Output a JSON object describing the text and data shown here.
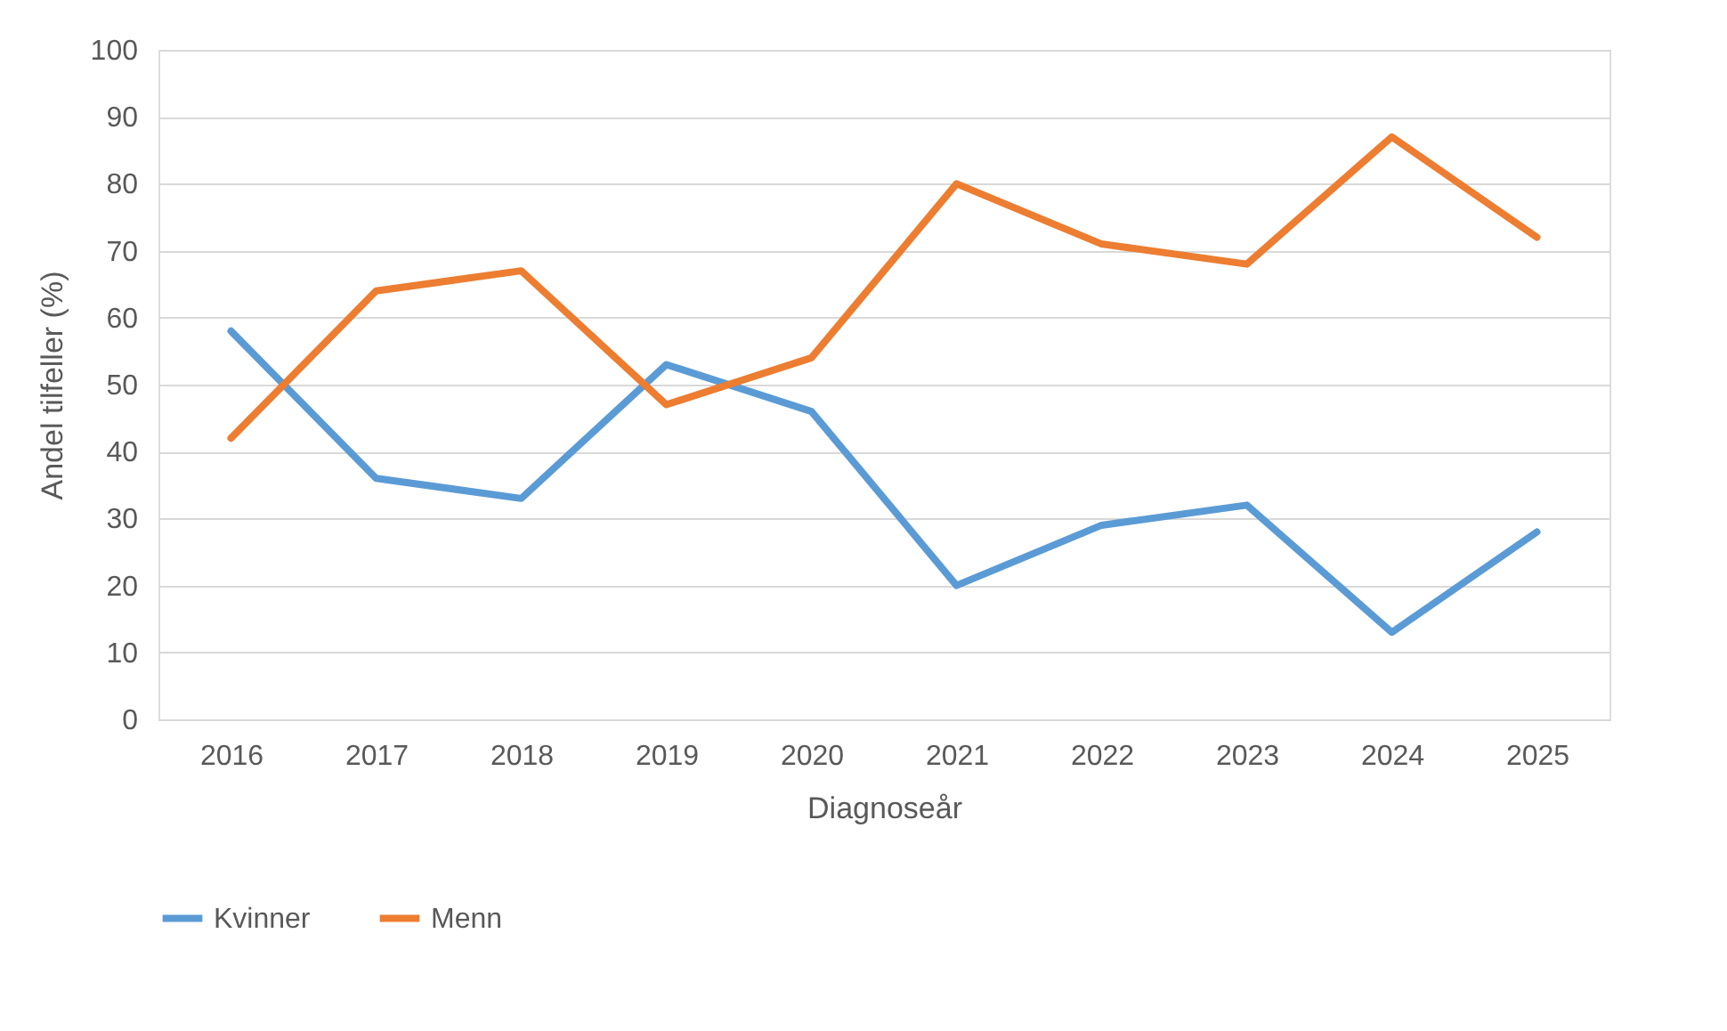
{
  "chart_data": {
    "type": "line",
    "ylabel": "Andel tilfeller (%)",
    "xlabel": "Diagnoseår",
    "categories": [
      "2016",
      "2017",
      "2018",
      "2019",
      "2020",
      "2021",
      "2022",
      "2023",
      "2024",
      "2025"
    ],
    "series": [
      {
        "name": "Kvinner",
        "color": "#5b9bd5",
        "values": [
          58,
          36,
          33,
          53,
          46,
          20,
          29,
          32,
          13,
          28
        ]
      },
      {
        "name": "Menn",
        "color": "#ed7d31",
        "values": [
          42,
          64,
          67,
          47,
          54,
          80,
          71,
          68,
          87,
          72
        ]
      }
    ],
    "ylim": [
      0,
      100
    ],
    "yticks": [
      0,
      10,
      20,
      30,
      40,
      50,
      60,
      70,
      80,
      90,
      100
    ],
    "grid": "y",
    "legend": "bottom"
  }
}
